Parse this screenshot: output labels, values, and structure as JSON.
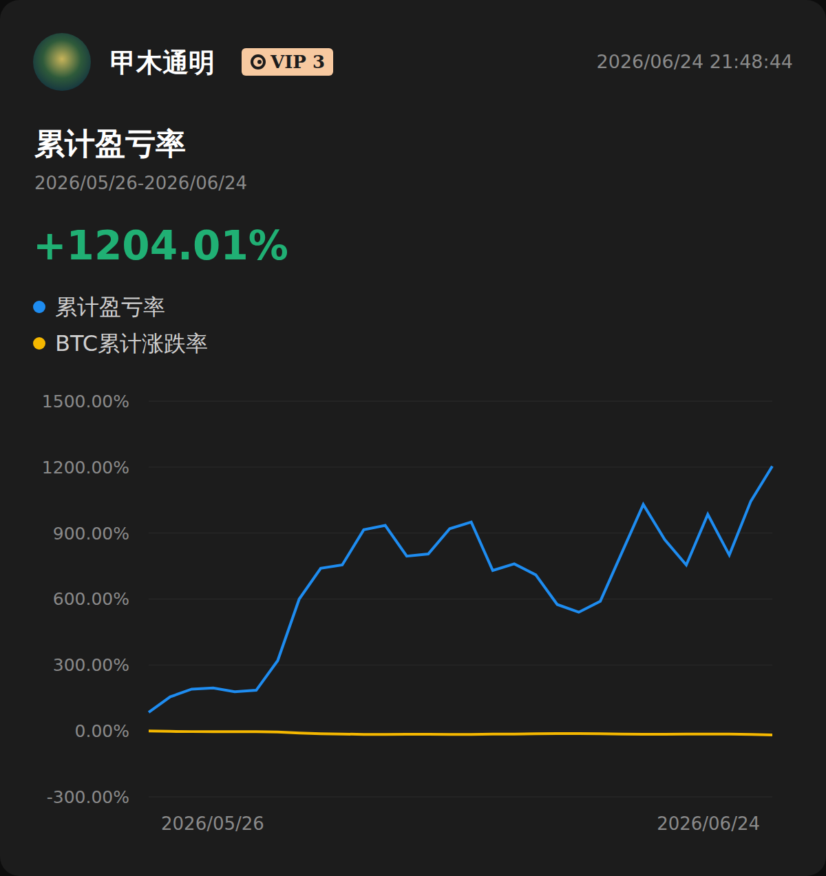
{
  "header": {
    "user": "甲木通明",
    "badge": "VIP 3",
    "timestamp": "2026/06/24 21:48:44"
  },
  "chart_data": {
    "type": "line",
    "title": "累计盈亏率",
    "subtitle": "2026/05/26-2026/06/24",
    "annotation": "+1204.01%",
    "categories": [
      "2026/05/26",
      null,
      null,
      null,
      null,
      null,
      null,
      null,
      null,
      null,
      null,
      null,
      null,
      null,
      null,
      null,
      null,
      null,
      null,
      null,
      null,
      null,
      null,
      null,
      null,
      null,
      null,
      null,
      null,
      "2026/06/24"
    ],
    "series": [
      {
        "name": "累计盈亏率",
        "color": "#1e8cf0",
        "values": [
          85,
          155,
          190,
          195,
          178,
          185,
          320,
          600,
          740,
          755,
          915,
          935,
          795,
          805,
          920,
          950,
          730,
          760,
          710,
          575,
          540,
          590,
          810,
          1030,
          870,
          755,
          985,
          800,
          1045,
          1204.01
        ]
      },
      {
        "name": "BTC累计涨跌率",
        "color": "#f5b800",
        "values": [
          0,
          -2,
          -3,
          -3,
          -3,
          -3,
          -5,
          -10,
          -13,
          -14,
          -16,
          -16,
          -15,
          -15,
          -16,
          -16,
          -14,
          -14,
          -13,
          -12,
          -12,
          -13,
          -14,
          -15,
          -15,
          -14,
          -14,
          -14,
          -16,
          -18
        ]
      }
    ],
    "ylim": [
      -300,
      1500
    ],
    "yticks": [
      {
        "value": -300,
        "label": "-300.00%"
      },
      {
        "value": 0,
        "label": "0.00%"
      },
      {
        "value": 300,
        "label": "300.00%"
      },
      {
        "value": 600,
        "label": "600.00%"
      },
      {
        "value": 900,
        "label": "900.00%"
      },
      {
        "value": 1200,
        "label": "1200.00%"
      },
      {
        "value": 1500,
        "label": "1500.00%"
      }
    ],
    "grid": true,
    "legend": "top-left"
  }
}
